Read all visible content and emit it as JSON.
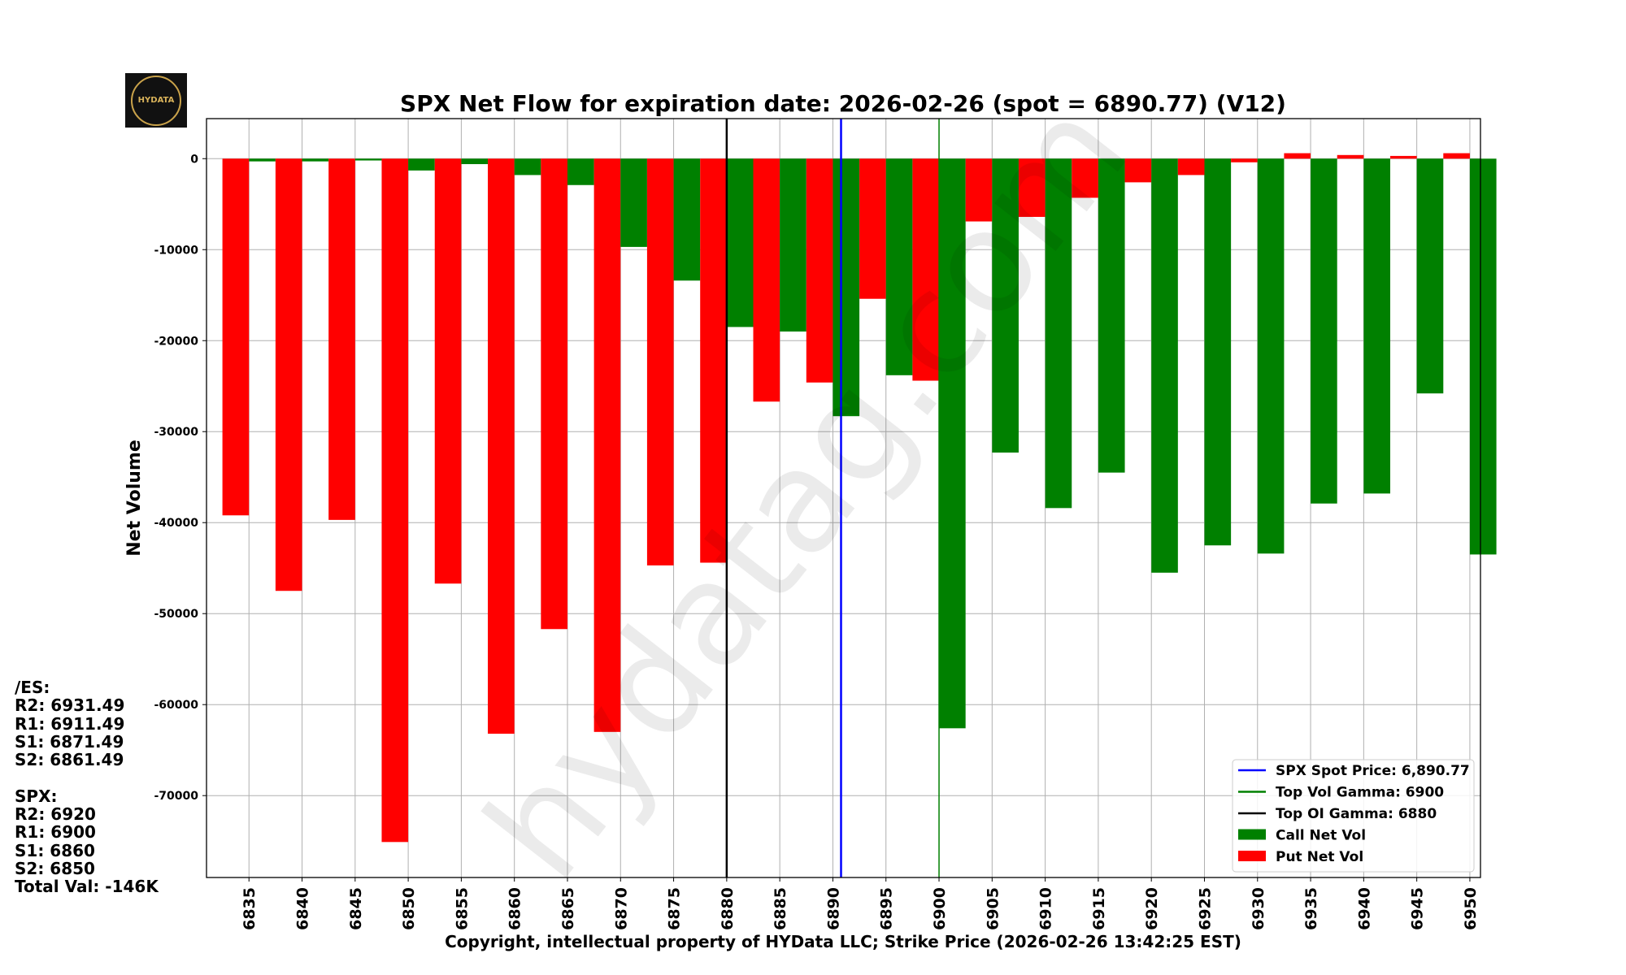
{
  "logo_text": "HYDATA",
  "watermark": "hydatag.com",
  "side_panel": {
    "lines": [
      "/ES:",
      "R2: 6931.49",
      "R1: 6911.49",
      "S1: 6871.49",
      "S2: 6861.49",
      "",
      "SPX:",
      "R2: 6920",
      "R1: 6900",
      "S1: 6860",
      "S2: 6850",
      "Total Val: -146K"
    ]
  },
  "chart_data": {
    "type": "bar",
    "title": "SPX Net Flow for expiration date: 2026-02-26 (spot = 6890.77) (V12)",
    "xlabel": "Copyright, intellectual property of HYData LLC; Strike Price (2026-02-26 13:42:25 EST)",
    "ylabel": "Net Volume",
    "categories": [
      6835,
      6840,
      6845,
      6850,
      6855,
      6860,
      6865,
      6870,
      6875,
      6880,
      6885,
      6890,
      6895,
      6900,
      6905,
      6910,
      6915,
      6920,
      6925,
      6930,
      6935,
      6940,
      6945,
      6950
    ],
    "series": [
      {
        "name": "Call Net Vol",
        "color": "#008000",
        "values": [
          -300,
          -300,
          -200,
          -1300,
          -600,
          -1800,
          -2900,
          -9700,
          -13400,
          -18500,
          -19000,
          -28300,
          -23800,
          -62600,
          -32300,
          -38400,
          -34500,
          -45500,
          -42500,
          -43400,
          -37900,
          -36800,
          -25800,
          -43500
        ]
      },
      {
        "name": "Put Net Vol",
        "color": "#ff0000",
        "values": [
          -39200,
          -47500,
          -39700,
          -75100,
          -46700,
          -63200,
          -51700,
          -63000,
          -44700,
          -44400,
          -26700,
          -24600,
          -15400,
          -24400,
          -6900,
          -6400,
          -4300,
          -2600,
          -1800,
          -400,
          600,
          400,
          300,
          600
        ]
      }
    ],
    "lines": [
      {
        "name": "SPX Spot Price: 6,890.77",
        "x": 6890.77,
        "color": "#0000ff"
      },
      {
        "name": "Top Vol Gamma: 6900",
        "x": 6900,
        "color": "#008000"
      },
      {
        "name": "Top OI Gamma: 6880",
        "x": 6880,
        "color": "#000000"
      }
    ],
    "yticks": [
      0,
      -10000,
      -20000,
      -30000,
      -40000,
      -50000,
      -60000,
      -70000
    ],
    "ylim": [
      -79000,
      4400
    ],
    "xlim": [
      6831,
      6951
    ],
    "grid": true,
    "legend": "bottom-right"
  }
}
